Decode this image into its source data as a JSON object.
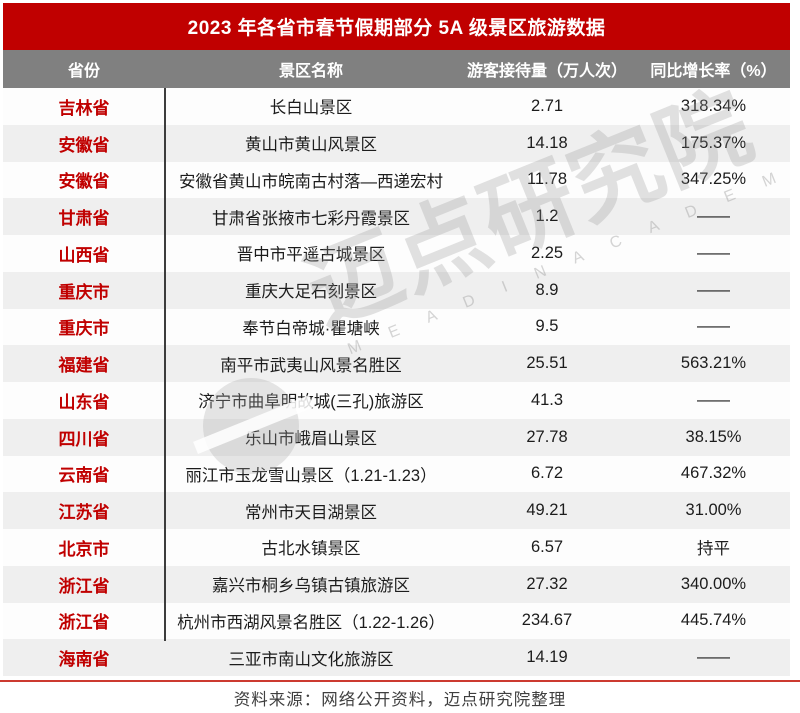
{
  "chart_data": {
    "type": "table",
    "title": "2023 年各省市春节假期部分 5A 级景区旅游数据",
    "columns": [
      "省份",
      "景区名称",
      "游客接待量（万人次）",
      "同比增长率（%）"
    ],
    "rows": [
      [
        "吉林省",
        "长白山景区",
        "2.71",
        "318.34%"
      ],
      [
        "安徽省",
        "黄山市黄山风景区",
        "14.18",
        "175.37%"
      ],
      [
        "安徽省",
        "安徽省黄山市皖南古村落—西递宏村",
        "11.78",
        "347.25%"
      ],
      [
        "甘肃省",
        "甘肃省张掖市七彩丹霞景区",
        "1.2",
        "——"
      ],
      [
        "山西省",
        "晋中市平遥古城景区",
        "2.25",
        "——"
      ],
      [
        "重庆市",
        "重庆大足石刻景区",
        "8.9",
        "——"
      ],
      [
        "重庆市",
        "奉节白帝城·瞿塘峡",
        "9.5",
        "——"
      ],
      [
        "福建省",
        "南平市武夷山风景名胜区",
        "25.51",
        "563.21%"
      ],
      [
        "山东省",
        "济宁市曲阜明故城(三孔)旅游区",
        "41.3",
        "——"
      ],
      [
        "四川省",
        "乐山市峨眉山景区",
        "27.78",
        "38.15%"
      ],
      [
        "云南省",
        "丽江市玉龙雪山景区（1.21-1.23）",
        "6.72",
        "467.32%"
      ],
      [
        "江苏省",
        "常州市天目湖景区",
        "49.21",
        "31.00%"
      ],
      [
        "北京市",
        "古北水镇景区",
        "6.57",
        "持平"
      ],
      [
        "浙江省",
        "嘉兴市桐乡乌镇古镇旅游区",
        "27.32",
        "340.00%"
      ],
      [
        "浙江省",
        "杭州市西湖风景名胜区（1.22-1.26）",
        "234.67",
        "445.74%"
      ],
      [
        "海南省",
        "三亚市南山文化旅游区",
        "14.19",
        "——"
      ]
    ],
    "source": "资料来源：网络公开资料，迈点研究院整理",
    "legend_position": "none",
    "grid": "off"
  },
  "watermark": {
    "text": "迈点研究院",
    "subtext": "M E A D I N  A C A D E M Y"
  },
  "colors": {
    "title_bg": "#c00000",
    "header_bg": "#808080",
    "alt_row_bg": "#efefef",
    "province_text": "#c00000",
    "divider_line": "#3d3d3d",
    "footer_rule": "#cc3a30"
  }
}
